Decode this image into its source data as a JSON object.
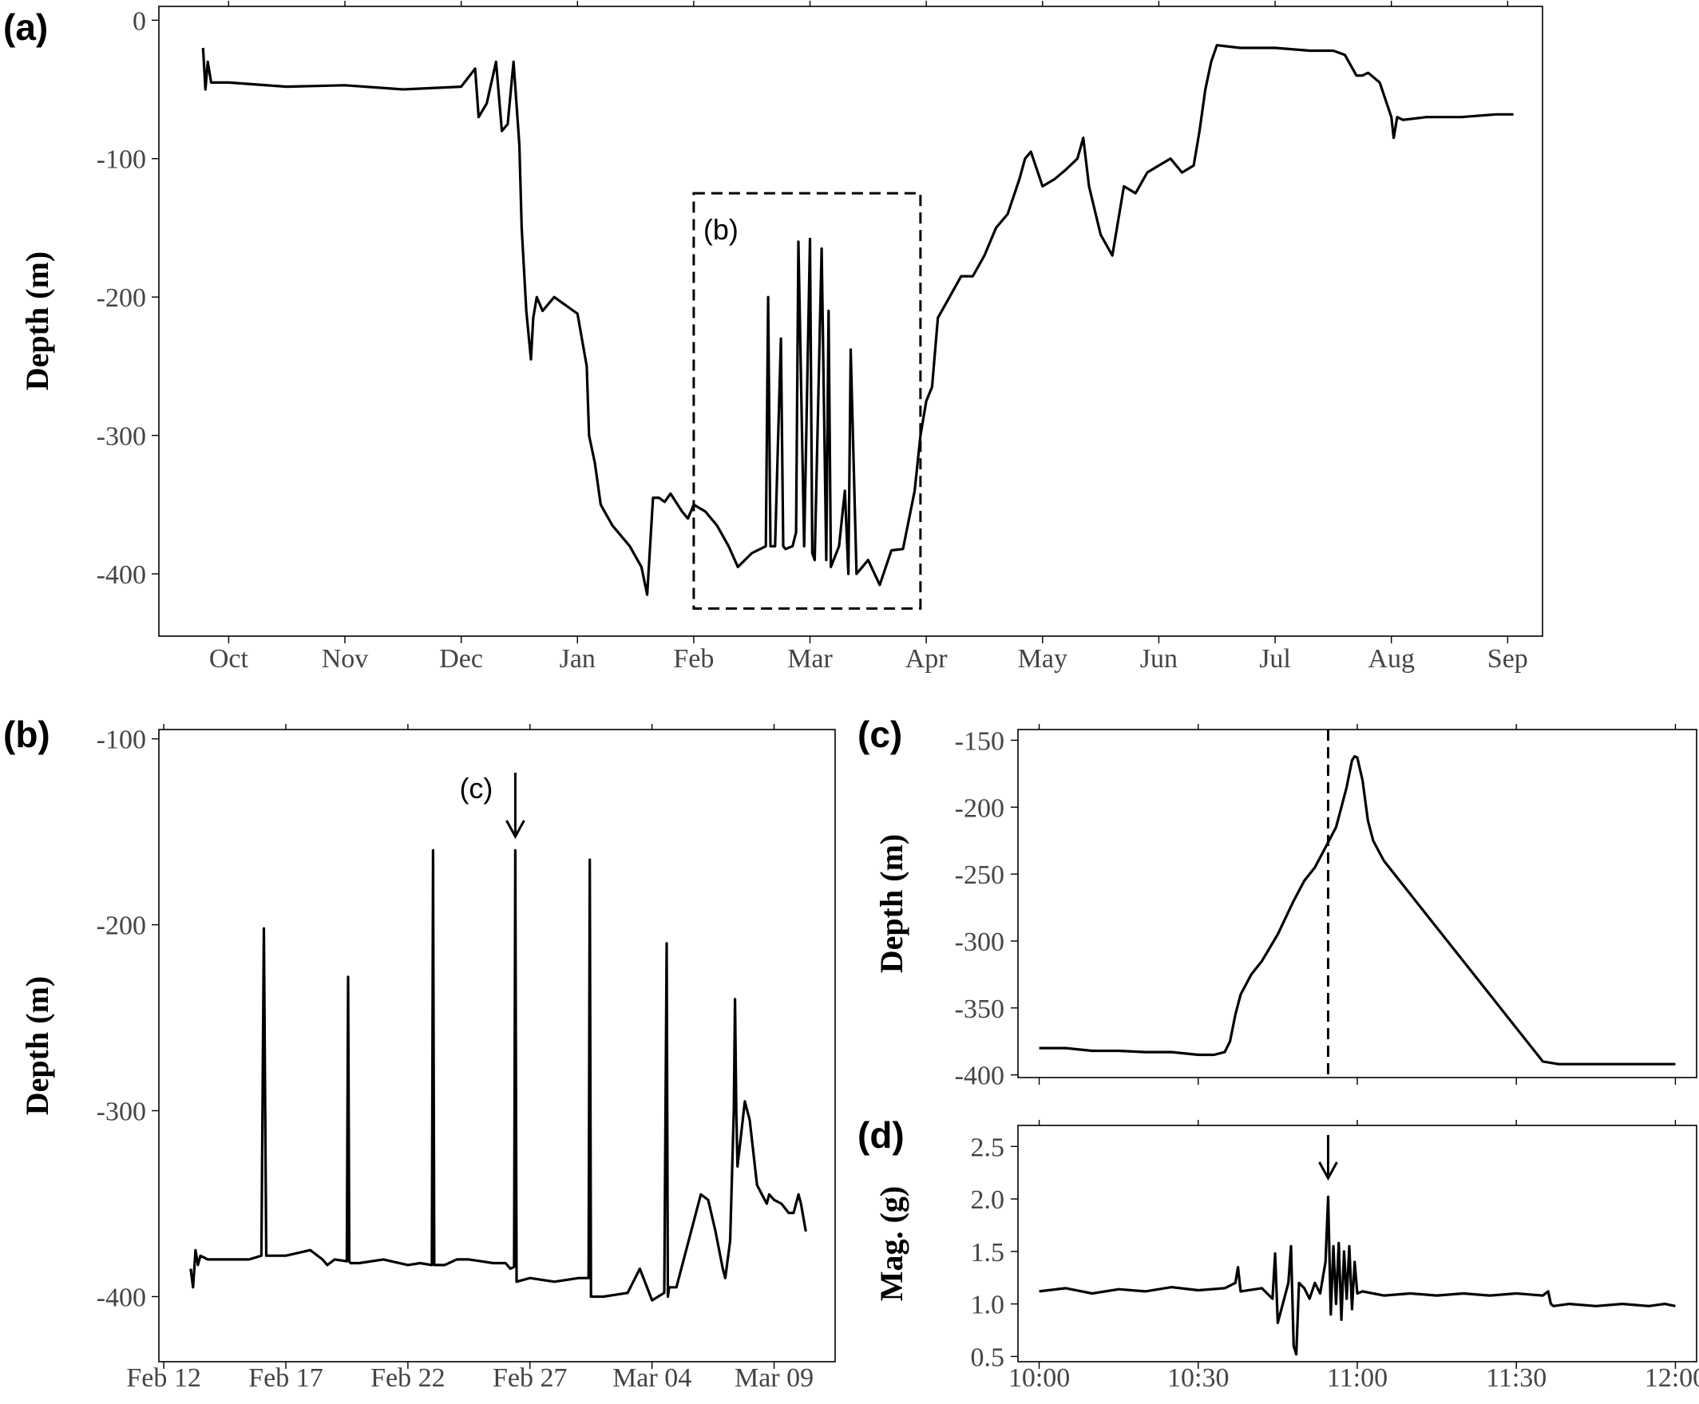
{
  "chart_data": [
    {
      "id": "a",
      "panel_label": "(a)",
      "type": "line",
      "ylabel": "Depth (m)",
      "xlabel": "",
      "ylim": [
        -445,
        10
      ],
      "yticks": [
        0,
        -100,
        -200,
        -300,
        -400
      ],
      "ytick_labels": [
        "0",
        "-100",
        "-200",
        "-300",
        "-400"
      ],
      "xlim": [
        -0.6,
        11.3
      ],
      "xticks": [
        0,
        1,
        2,
        3,
        4,
        5,
        6,
        7,
        8,
        9,
        10,
        11
      ],
      "xtick_labels": [
        "Oct",
        "Nov",
        "Dec",
        "Jan",
        "Feb",
        "Mar",
        "Apr",
        "May",
        "Jun",
        "Jul",
        "Aug",
        "Sep"
      ],
      "x_units": "months since Oct 1",
      "grid": false,
      "series": [
        {
          "x": [
            -0.22,
            -0.2,
            -0.18,
            -0.15,
            0,
            0.5,
            1,
            1.5,
            2,
            2.12,
            2.15,
            2.22,
            2.3,
            2.35,
            2.4,
            2.45,
            2.5,
            2.52,
            2.56,
            2.6,
            2.62,
            2.65,
            2.7,
            2.75,
            2.8,
            3,
            3.08,
            3.1,
            3.15,
            3.2,
            3.3,
            3.45,
            3.55,
            3.6,
            3.65,
            3.7,
            3.75,
            3.8,
            3.9,
            3.95,
            4,
            4.1,
            4.2,
            4.3,
            4.38,
            4.5,
            4.62,
            4.64,
            4.66,
            4.7,
            4.75,
            4.77,
            4.79,
            4.85,
            4.88,
            4.9,
            4.95,
            5,
            5.02,
            5.04,
            5.1,
            5.14,
            5.16,
            5.18,
            5.25,
            5.3,
            5.33,
            5.35,
            5.4,
            5.45,
            5.5,
            5.6,
            5.7,
            5.8,
            5.9,
            5.95,
            6,
            6.05,
            6.1,
            6.2,
            6.3,
            6.4,
            6.5,
            6.6,
            6.7,
            6.8,
            6.85,
            6.9,
            7,
            7.1,
            7.2,
            7.3,
            7.35,
            7.4,
            7.5,
            7.6,
            7.7,
            7.8,
            7.9,
            8,
            8.1,
            8.2,
            8.3,
            8.35,
            8.4,
            8.45,
            8.5,
            8.7,
            9,
            9.3,
            9.5,
            9.6,
            9.7,
            9.75,
            9.8,
            9.9,
            10,
            10.02,
            10.05,
            10.1,
            10.3,
            10.6,
            10.9,
            11.05
          ],
          "y": [
            -20,
            -50,
            -30,
            -45,
            -45,
            -48,
            -47,
            -50,
            -48,
            -35,
            -70,
            -60,
            -30,
            -80,
            -75,
            -30,
            -90,
            -150,
            -210,
            -245,
            -215,
            -200,
            -210,
            -205,
            -200,
            -212,
            -250,
            -300,
            -320,
            -350,
            -365,
            -380,
            -395,
            -415,
            -345,
            -345,
            -348,
            -342,
            -355,
            -360,
            -350,
            -355,
            -365,
            -380,
            -395,
            -385,
            -380,
            -200,
            -380,
            -380,
            -230,
            -380,
            -382,
            -380,
            -370,
            -160,
            -380,
            -158,
            -385,
            -390,
            -165,
            -390,
            -210,
            -395,
            -380,
            -340,
            -400,
            -238,
            -400,
            -395,
            -390,
            -408,
            -383,
            -382,
            -340,
            -300,
            -275,
            -265,
            -215,
            -200,
            -185,
            -185,
            -170,
            -150,
            -140,
            -115,
            -100,
            -95,
            -120,
            -115,
            -108,
            -100,
            -85,
            -120,
            -155,
            -170,
            -120,
            -125,
            -110,
            -105,
            -100,
            -110,
            -105,
            -80,
            -50,
            -30,
            -18,
            -20,
            -20,
            -22,
            -22,
            -25,
            -40,
            -40,
            -38,
            -45,
            -70,
            -85,
            -70,
            -72,
            -70,
            -70,
            -68,
            -68
          ]
        }
      ],
      "inset_box": {
        "label": "(b)",
        "x_range": [
          4,
          5.95
        ],
        "y_range": [
          -425,
          -125
        ]
      }
    },
    {
      "id": "b",
      "panel_label": "(b)",
      "type": "line",
      "ylabel": "Depth (m)",
      "xlabel": "",
      "ylim": [
        -435,
        -95
      ],
      "yticks": [
        -100,
        -200,
        -300,
        -400
      ],
      "ytick_labels": [
        "-100",
        "-200",
        "-300",
        "-400"
      ],
      "xlim": [
        -0.2,
        27.5
      ],
      "xticks": [
        0,
        5,
        10,
        15,
        20,
        25
      ],
      "xtick_labels": [
        "Feb 12",
        "Feb 17",
        "Feb 22",
        "Feb 27",
        "Mar 04",
        "Mar 09"
      ],
      "x_units": "days since Feb 12",
      "grid": false,
      "series": [
        {
          "x": [
            1.1,
            1.2,
            1.3,
            1.4,
            1.5,
            1.8,
            2.3,
            2.8,
            3.5,
            4,
            4.1,
            4.2,
            4.3,
            5,
            6,
            6.5,
            6.7,
            7,
            7.5,
            7.55,
            7.6,
            7.65,
            8,
            9,
            10,
            10.5,
            10.98,
            11.03,
            11.08,
            11.5,
            12,
            12.5,
            13,
            13.5,
            14,
            14.2,
            14.35,
            14.4,
            14.45,
            15,
            16,
            17,
            17.3,
            17.4,
            17.45,
            17.5,
            17.55,
            18,
            19,
            19.5,
            20,
            20.5,
            20.6,
            20.65,
            20.7,
            21,
            21.5,
            22,
            22.3,
            22.6,
            22.9,
            23,
            23.2,
            23.35,
            23.4,
            23.45,
            23.5,
            23.8,
            24,
            24.3,
            24.5,
            24.7,
            24.8,
            25,
            25.3,
            25.6,
            25.8,
            26,
            26.1,
            26.3
          ],
          "y": [
            -385,
            -395,
            -375,
            -383,
            -378,
            -380,
            -380,
            -380,
            -380,
            -378,
            -202,
            -378,
            -378,
            -378,
            -375,
            -380,
            -383,
            -380,
            -381,
            -228,
            -381,
            -382,
            -382,
            -380,
            -383,
            -382,
            -383,
            -160,
            -383,
            -383,
            -380,
            -380,
            -381,
            -382,
            -382,
            -385,
            -384,
            -160,
            -392,
            -390,
            -392,
            -390,
            -390,
            -390,
            -165,
            -400,
            -400,
            -400,
            -398,
            -385,
            -402,
            -398,
            -210,
            -400,
            -395,
            -395,
            -370,
            -345,
            -348,
            -365,
            -385,
            -390,
            -370,
            -300,
            -240,
            -300,
            -330,
            -295,
            -305,
            -340,
            -345,
            -350,
            -345,
            -348,
            -350,
            -355,
            -355,
            -345,
            -350,
            -365
          ]
        }
      ],
      "annotation": {
        "label": "(c)",
        "arrow_at_x": 14.4
      }
    },
    {
      "id": "c",
      "panel_label": "(c)",
      "type": "line",
      "ylabel": "Depth (m)",
      "xlabel": "",
      "ylim": [
        -402,
        -142
      ],
      "yticks": [
        -150,
        -200,
        -250,
        -300,
        -350,
        -400
      ],
      "ytick_labels": [
        "-150",
        "-200",
        "-250",
        "-300",
        "-350",
        "-400"
      ],
      "xlim": [
        -4,
        124
      ],
      "xticks": [
        0,
        30,
        60,
        90,
        120
      ],
      "xtick_labels": [],
      "x_units": "minutes since 10:00",
      "grid": false,
      "vline_x": 54.5,
      "series": [
        {
          "x": [
            0,
            5,
            10,
            15,
            20,
            25,
            30,
            33,
            35,
            36,
            37,
            38,
            40,
            42,
            45,
            48,
            50,
            52,
            54,
            56,
            57,
            58,
            59,
            59.5,
            60,
            61,
            62,
            63,
            65,
            70,
            75,
            80,
            85,
            90,
            95,
            98,
            100,
            105,
            110,
            115,
            120
          ],
          "y": [
            -380,
            -380,
            -382,
            -382,
            -383,
            -383,
            -385,
            -385,
            -383,
            -375,
            -355,
            -340,
            -325,
            -315,
            -295,
            -270,
            -255,
            -245,
            -230,
            -215,
            -200,
            -185,
            -165,
            -162,
            -163,
            -180,
            -210,
            -225,
            -240,
            -265,
            -290,
            -315,
            -340,
            -365,
            -390,
            -392,
            -392,
            -392,
            -392,
            -392,
            -392
          ]
        }
      ]
    },
    {
      "id": "d",
      "panel_label": "(d)",
      "type": "line",
      "ylabel": "Mag. (g)",
      "xlabel": "",
      "ylim": [
        0.45,
        2.7
      ],
      "yticks": [
        0.5,
        1.0,
        1.5,
        2.0,
        2.5
      ],
      "ytick_labels": [
        "0.5",
        "1.0",
        "1.5",
        "2.0",
        "2.5"
      ],
      "xlim": [
        -4,
        124
      ],
      "xticks": [
        0,
        30,
        60,
        90,
        120
      ],
      "xtick_labels": [
        "10:00",
        "10:30",
        "11:00",
        "11:30",
        "12:00"
      ],
      "x_units": "minutes since 10:00",
      "grid": false,
      "annotation": {
        "arrow_at_x": 54.5
      },
      "series": [
        {
          "x": [
            0,
            5,
            10,
            15,
            20,
            25,
            30,
            35,
            37,
            37.5,
            38,
            42,
            44,
            44.5,
            45,
            47,
            47.5,
            48,
            48.5,
            49,
            50,
            51,
            52,
            53,
            54,
            54.5,
            55,
            55.5,
            56,
            56.5,
            57,
            57.5,
            58,
            58.5,
            59,
            59.5,
            60,
            61,
            63,
            65,
            70,
            75,
            80,
            85,
            90,
            95,
            96,
            96.5,
            97,
            100,
            105,
            110,
            115,
            118,
            120
          ],
          "y": [
            1.12,
            1.15,
            1.1,
            1.14,
            1.12,
            1.16,
            1.13,
            1.15,
            1.2,
            1.35,
            1.12,
            1.15,
            1.05,
            1.48,
            0.82,
            1.2,
            1.55,
            0.6,
            0.52,
            1.2,
            1.15,
            1.05,
            1.2,
            1.1,
            1.4,
            2.02,
            0.9,
            1.55,
            1.0,
            1.58,
            0.85,
            1.5,
            1.05,
            1.55,
            0.95,
            1.4,
            1.1,
            1.12,
            1.1,
            1.08,
            1.1,
            1.08,
            1.1,
            1.08,
            1.1,
            1.08,
            1.12,
            1.0,
            0.98,
            1.0,
            0.98,
            1.0,
            0.98,
            1.0,
            0.98
          ]
        }
      ]
    }
  ]
}
